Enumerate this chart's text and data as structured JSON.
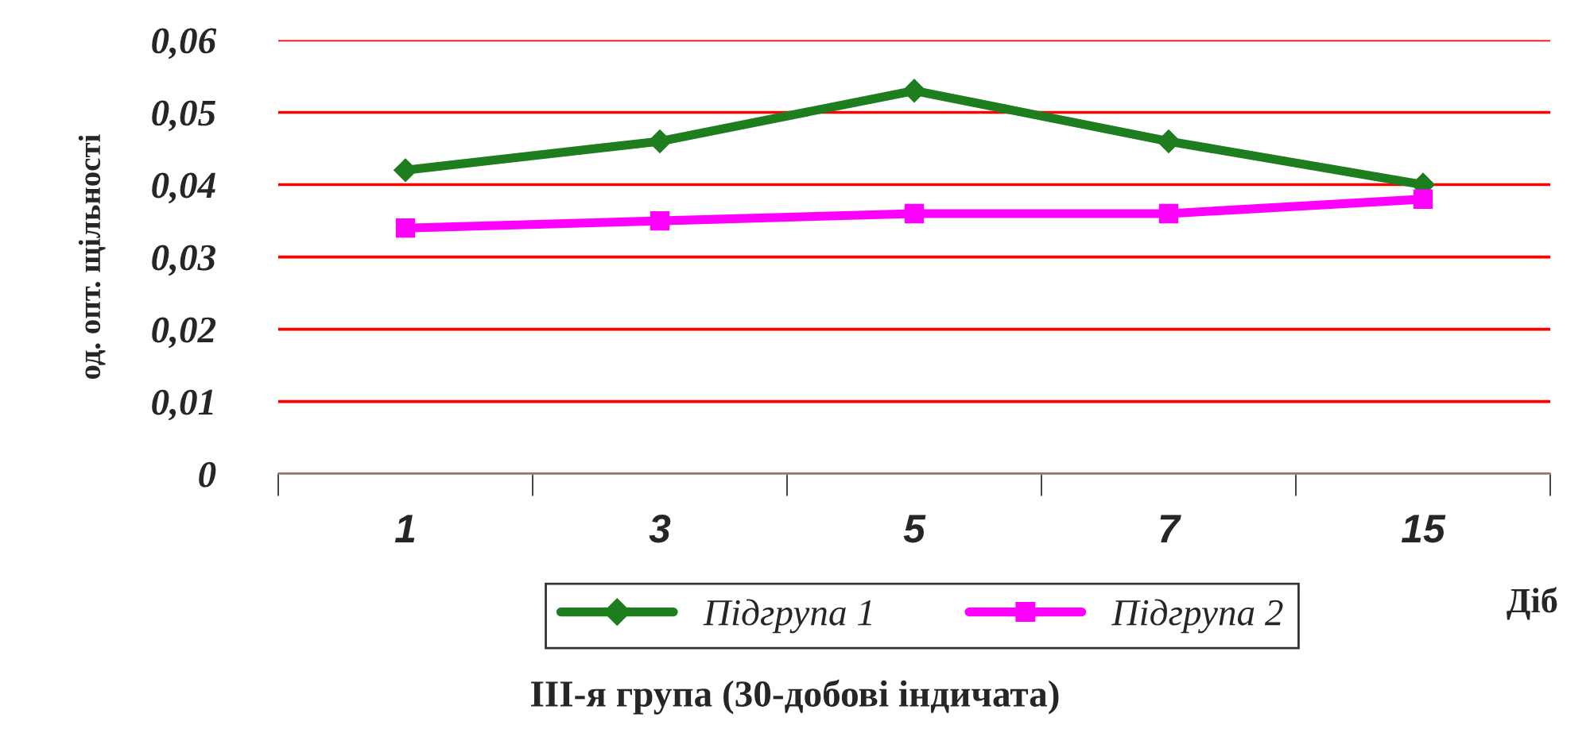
{
  "chart_data": {
    "type": "line",
    "title": "ІІІ-я група (30-добові індичата)",
    "xlabel": "Діб",
    "ylabel": "од. опт. щільності",
    "categories": [
      "1",
      "3",
      "5",
      "7",
      "15"
    ],
    "series": [
      {
        "name": "Підгрупа 1",
        "color": "#1e7d1e",
        "values": [
          0.042,
          0.046,
          0.053,
          0.046,
          0.04
        ],
        "marker": "diamond"
      },
      {
        "name": "Підгрупа 2",
        "color": "#ff00ff",
        "values": [
          0.034,
          0.035,
          0.036,
          0.036,
          0.038
        ],
        "marker": "square"
      }
    ],
    "ylim": [
      0,
      0.06
    ],
    "yticks": [
      {
        "value": 0,
        "label": "0"
      },
      {
        "value": 0.01,
        "label": "0,01"
      },
      {
        "value": 0.02,
        "label": "0,02"
      },
      {
        "value": 0.03,
        "label": "0,03"
      },
      {
        "value": 0.04,
        "label": "0,04"
      },
      {
        "value": 0.05,
        "label": "0,05"
      },
      {
        "value": 0.06,
        "label": "0,06"
      }
    ],
    "grid": "y",
    "legend": "bottom",
    "line_style": "solid"
  }
}
